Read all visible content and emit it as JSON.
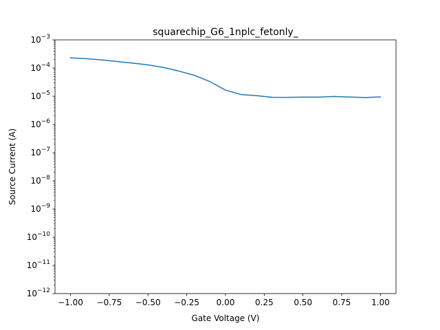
{
  "chart_data": {
    "type": "line",
    "title": "squarechip_G6_1nplc_fetonly_",
    "xlabel": "Gate Voltage (V)",
    "ylabel": "Source Current (A)",
    "xlim": [
      -1.1,
      1.1
    ],
    "ylim": [
      1e-12,
      0.001
    ],
    "yscale": "log",
    "grid": false,
    "legend": "none",
    "x_ticks": [
      -1.0,
      -0.75,
      -0.5,
      -0.25,
      0.0,
      0.25,
      0.5,
      0.75,
      1.0
    ],
    "x_tick_labels": [
      "−1.00",
      "−0.75",
      "−0.50",
      "−0.25",
      "0.00",
      "0.25",
      "0.50",
      "0.75",
      "1.00"
    ],
    "y_tick_exponents": [
      -12,
      -11,
      -10,
      -9,
      -8,
      -7,
      -6,
      -5,
      -4,
      -3
    ],
    "y_tick_labels": [
      {
        "base": "10",
        "exp": "−12"
      },
      {
        "base": "10",
        "exp": "−11"
      },
      {
        "base": "10",
        "exp": "−10"
      },
      {
        "base": "10",
        "exp": "−9"
      },
      {
        "base": "10",
        "exp": "−8"
      },
      {
        "base": "10",
        "exp": "−7"
      },
      {
        "base": "10",
        "exp": "−6"
      },
      {
        "base": "10",
        "exp": "−5"
      },
      {
        "base": "10",
        "exp": "−4"
      },
      {
        "base": "10",
        "exp": "−3"
      }
    ],
    "series": [
      {
        "color": "#1f77b4",
        "x": [
          -1.0,
          -0.9,
          -0.8,
          -0.7,
          -0.6,
          -0.5,
          -0.4,
          -0.3,
          -0.2,
          -0.1,
          0.0,
          0.1,
          0.2,
          0.3,
          0.4,
          0.5,
          0.6,
          0.7,
          0.8,
          0.9,
          1.0
        ],
        "y": [
          0.00023,
          0.000215,
          0.000195,
          0.00017,
          0.00015,
          0.00013,
          0.000105,
          7.8e-05,
          5.5e-05,
          3.3e-05,
          1.65e-05,
          1.15e-05,
          1.05e-05,
          9.2e-06,
          9.1e-06,
          9.3e-06,
          9.3e-06,
          9.8e-06,
          9.4e-06,
          9e-06,
          9.5e-06
        ]
      }
    ]
  }
}
